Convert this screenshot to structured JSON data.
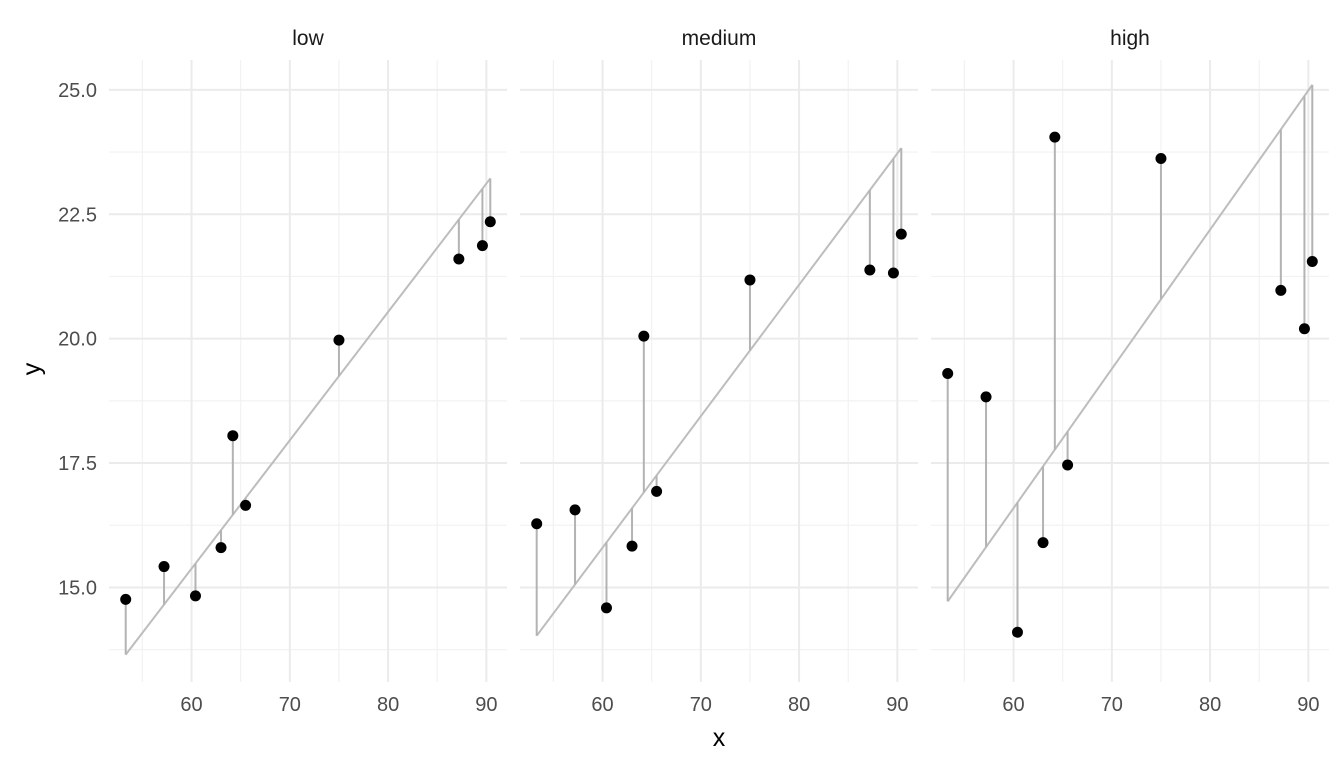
{
  "chart_data": {
    "type": "scatter",
    "facets": [
      {
        "label": "low",
        "points": [
          {
            "x": 53.3,
            "y": 14.76
          },
          {
            "x": 57.2,
            "y": 15.42
          },
          {
            "x": 60.4,
            "y": 14.83
          },
          {
            "x": 63.0,
            "y": 15.8
          },
          {
            "x": 64.2,
            "y": 18.05
          },
          {
            "x": 65.5,
            "y": 16.65
          },
          {
            "x": 75.0,
            "y": 19.97
          },
          {
            "x": 87.2,
            "y": 21.6
          },
          {
            "x": 89.6,
            "y": 21.87
          },
          {
            "x": 90.4,
            "y": 22.35
          }
        ],
        "fit": {
          "x": [
            53.3,
            90.4
          ],
          "y": [
            13.65,
            23.22
          ]
        }
      },
      {
        "label": "medium",
        "points": [
          {
            "x": 53.3,
            "y": 16.28
          },
          {
            "x": 57.2,
            "y": 16.56
          },
          {
            "x": 60.4,
            "y": 14.59
          },
          {
            "x": 63.0,
            "y": 15.83
          },
          {
            "x": 64.2,
            "y": 20.05
          },
          {
            "x": 65.5,
            "y": 16.93
          },
          {
            "x": 75.0,
            "y": 21.18
          },
          {
            "x": 87.2,
            "y": 21.38
          },
          {
            "x": 89.6,
            "y": 21.32
          },
          {
            "x": 90.4,
            "y": 22.1
          }
        ],
        "fit": {
          "x": [
            53.3,
            90.4
          ],
          "y": [
            14.03,
            23.83
          ]
        }
      },
      {
        "label": "high",
        "points": [
          {
            "x": 53.3,
            "y": 19.3
          },
          {
            "x": 57.2,
            "y": 18.83
          },
          {
            "x": 60.4,
            "y": 14.1
          },
          {
            "x": 63.0,
            "y": 15.9
          },
          {
            "x": 64.2,
            "y": 24.05
          },
          {
            "x": 65.5,
            "y": 17.46
          },
          {
            "x": 75.0,
            "y": 23.62
          },
          {
            "x": 87.2,
            "y": 20.97
          },
          {
            "x": 89.6,
            "y": 20.2
          },
          {
            "x": 90.4,
            "y": 21.55
          }
        ],
        "fit": {
          "x": [
            53.3,
            90.4
          ],
          "y": [
            14.72,
            25.1
          ]
        }
      }
    ],
    "xlabel": "x",
    "ylabel": "y",
    "x_ticks": [
      60,
      70,
      80,
      90
    ],
    "x_tick_labels": [
      "60",
      "70",
      "80",
      "90"
    ],
    "y_ticks": [
      15.0,
      17.5,
      20.0,
      22.5,
      25.0
    ],
    "y_tick_labels": [
      "15.0",
      "17.5",
      "20.0",
      "22.5",
      "25.0"
    ],
    "xlim": [
      51.6,
      92.1
    ],
    "ylim": [
      13.1,
      25.6
    ],
    "grid": true,
    "legend": "none",
    "colors": {
      "points": "#000000",
      "fit_line": "#bdbdbd",
      "residuals": "#b3b3b3",
      "grid": "#ebebeb"
    }
  }
}
